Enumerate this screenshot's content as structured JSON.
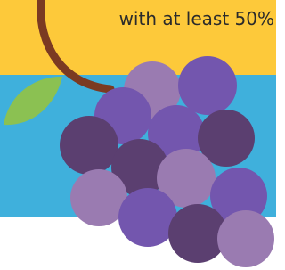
{
  "caption": "with at least 50%"
}
